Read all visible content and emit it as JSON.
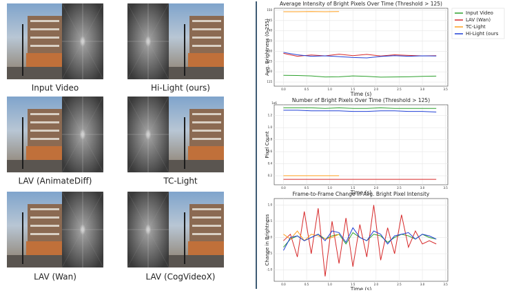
{
  "panels": [
    {
      "caption": "Input Video"
    },
    {
      "caption": "Hi-Light (ours)"
    },
    {
      "caption": "LAV (AnimateDiff)"
    },
    {
      "caption": "TC-Light"
    },
    {
      "caption": "LAV (Wan)"
    },
    {
      "caption": "LAV (CogVideoX)"
    }
  ],
  "chart_data": [
    {
      "type": "line",
      "title": "Average Intensity of Bright Pixels Over Time (Threshold > 125)",
      "x_label": "Time (s)",
      "y_label": "Avg. Brightness (0-255)",
      "grid": true,
      "legend": "outside right",
      "x": [
        0,
        0.3,
        0.6,
        0.9,
        1.2,
        1.5,
        1.8,
        2.1,
        2.4,
        2.7,
        3.0,
        3.3
      ],
      "xlim": [
        -0.2,
        3.55
      ],
      "xticks": [
        {
          "value": 0,
          "label": "0.0"
        },
        0.5,
        {
          "value": 1,
          "label": "1.0"
        },
        1.5,
        {
          "value": 2,
          "label": "2.0"
        },
        2.5,
        {
          "value": 3,
          "label": "3.0"
        },
        3.5
      ],
      "ylim": [
        113,
        151
      ],
      "yticks": [
        115,
        120,
        125,
        130,
        135,
        140,
        145,
        150
      ],
      "series": [
        {
          "name": "Input Video",
          "color": "#2ca02c",
          "values": [
            118.3,
            118.2,
            118,
            117.5,
            117.6,
            118,
            117.8,
            117.4,
            117.5,
            117.6,
            117.8,
            117.9
          ]
        },
        {
          "name": "LAV (Wan)",
          "color": "#d62728",
          "values": [
            129,
            127.6,
            128.2,
            127.8,
            128.6,
            127.9,
            128.5,
            127.7,
            128.3,
            128,
            127.8,
            127.9
          ]
        },
        {
          "name": "TC-Light",
          "color": "#ff9f1c",
          "values": [
            149.3,
            149.3,
            149.4,
            149.3,
            149.4,
            null,
            null,
            null,
            null,
            null,
            null,
            null
          ]
        },
        {
          "name": "Hi-Light (ours",
          "color": "#1f3fd6",
          "values": [
            129.5,
            128.3,
            127.6,
            127.8,
            127.4,
            127,
            126.8,
            127.5,
            127.9,
            127.6,
            127.8,
            127.7
          ]
        }
      ]
    },
    {
      "type": "line",
      "title": "Number of Bright Pixels Over Time (Threshold > 125)",
      "x_label": "Time (s)",
      "y_label": "Pixel Count",
      "y_offset_label": "1e6",
      "grid": true,
      "x": [
        0,
        0.3,
        0.6,
        0.9,
        1.2,
        1.5,
        1.8,
        2.1,
        2.4,
        2.7,
        3.0,
        3.3
      ],
      "xlim": [
        -0.2,
        3.55
      ],
      "xticks": [
        {
          "value": 0,
          "label": "0.0"
        },
        0.5,
        {
          "value": 1,
          "label": "1.0"
        },
        1.5,
        {
          "value": 2,
          "label": "2.0"
        },
        2.5,
        {
          "value": 3,
          "label": "3.0"
        },
        3.5
      ],
      "ylim": [
        0.05,
        1.38
      ],
      "yticks": [
        0.2,
        0.4,
        0.6,
        0.8,
        {
          "value": 1,
          "label": "1.0"
        },
        1.2
      ],
      "series": [
        {
          "name": "Input Video",
          "color": "#2ca02c",
          "values": [
            1.33,
            1.33,
            1.33,
            1.32,
            1.33,
            1.32,
            1.32,
            1.33,
            1.32,
            1.32,
            1.32,
            1.32
          ]
        },
        {
          "name": "LAV (Wan)",
          "color": "#d62728",
          "values": [
            0.14,
            0.14,
            0.14,
            0.14,
            0.14,
            0.14,
            0.14,
            0.14,
            0.14,
            0.14,
            0.14,
            0.14
          ]
        },
        {
          "name": "TC-Light",
          "color": "#ff9f1c",
          "values": [
            0.2,
            0.2,
            0.2,
            0.2,
            0.2,
            null,
            null,
            null,
            null,
            null,
            null,
            null
          ]
        },
        {
          "name": "Hi-Light (ours",
          "color": "#1f3fd6",
          "values": [
            1.29,
            1.29,
            1.28,
            1.28,
            1.28,
            1.27,
            1.27,
            1.28,
            1.28,
            1.27,
            1.27,
            1.26
          ]
        }
      ]
    },
    {
      "type": "line",
      "title": "Frame-to-Frame Change in Avg. Bright Pixel Intensity",
      "x_label": "Time (s)",
      "y_label": "Change in Brightness",
      "grid": true,
      "x": [
        0,
        0.15,
        0.3,
        0.45,
        0.6,
        0.75,
        0.9,
        1.05,
        1.2,
        1.35,
        1.5,
        1.65,
        1.8,
        1.95,
        2.1,
        2.25,
        2.4,
        2.55,
        2.7,
        2.85,
        3.0,
        3.15,
        3.3
      ],
      "xlim": [
        -0.2,
        3.55
      ],
      "xticks": [
        {
          "value": 0,
          "label": "0.0"
        },
        0.5,
        {
          "value": 1,
          "label": "1.0"
        },
        1.5,
        {
          "value": 2,
          "label": "2.0"
        },
        2.5,
        {
          "value": 3,
          "label": "3.0"
        },
        3.5
      ],
      "ylim": [
        -1.35,
        1.2
      ],
      "yticks": [
        {
          "value": -1,
          "label": "-1.0"
        },
        -0.5,
        {
          "value": 0,
          "label": "0.0"
        },
        0.5,
        {
          "value": 1,
          "label": "1.0"
        }
      ],
      "series": [
        {
          "name": "Input Video",
          "color": "#2ca02c",
          "values": [
            -0.3,
            -0.05,
            0.05,
            -0.1,
            0,
            0.1,
            -0.05,
            0.05,
            0.1,
            -0.2,
            0.15,
            0,
            -0.1,
            0.1,
            0.05,
            -0.15,
            0,
            0.1,
            0.05,
            -0.05,
            0.1,
            0,
            -0.05
          ]
        },
        {
          "name": "LAV (Wan)",
          "color": "#d62728",
          "values": [
            -0.1,
            0.1,
            -0.6,
            0.8,
            -0.5,
            0.9,
            -1.2,
            0.5,
            -0.8,
            0.6,
            -0.9,
            0.4,
            -0.6,
            1.0,
            -0.7,
            0.3,
            -0.5,
            0.7,
            -0.3,
            0.2,
            -0.2,
            -0.1,
            -0.2
          ]
        },
        {
          "name": "TC-Light",
          "color": "#ff9f1c",
          "values": [
            0.1,
            -0.05,
            0.2,
            -0.1,
            0.1,
            0.05,
            -0.05,
            0,
            0.1,
            null,
            null,
            null,
            null,
            null,
            null,
            null,
            null,
            null,
            null,
            null,
            null,
            null,
            null
          ]
        },
        {
          "name": "Hi-Light (ours",
          "color": "#1f3fd6",
          "values": [
            -0.4,
            0,
            0.05,
            -0.1,
            0,
            0.1,
            -0.1,
            0.2,
            0.15,
            -0.15,
            0.3,
            0,
            -0.1,
            0.2,
            0.1,
            -0.2,
            0.05,
            0.1,
            0.15,
            -0.05,
            0.1,
            0.05,
            -0.05
          ]
        }
      ]
    }
  ]
}
